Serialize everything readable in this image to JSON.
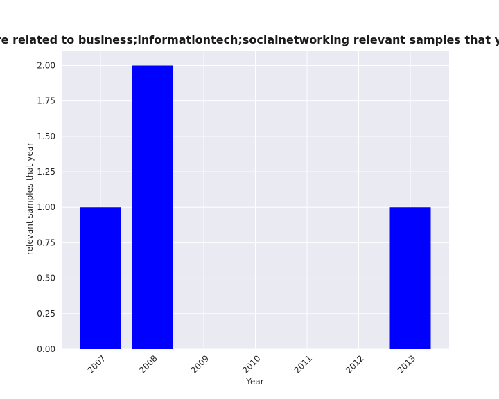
{
  "chart_data": {
    "type": "bar",
    "title": "Papers that are related to business;informationtech;socialnetworking relevant samples that year in privacy",
    "xlabel": "Year",
    "ylabel": "relevant samples that year",
    "categories": [
      "2007",
      "2008",
      "2009",
      "2010",
      "2011",
      "2012",
      "2013"
    ],
    "values": [
      1,
      2,
      0,
      0,
      0,
      0,
      1
    ],
    "ylim": [
      0,
      2.1
    ],
    "yticks": [
      "0.00",
      "0.25",
      "0.50",
      "0.75",
      "1.00",
      "1.25",
      "1.50",
      "1.75",
      "2.00"
    ],
    "bar_color": "#0000ff",
    "background_color": "#eaeaf2",
    "grid_color": "#ffffff",
    "grid": true
  }
}
